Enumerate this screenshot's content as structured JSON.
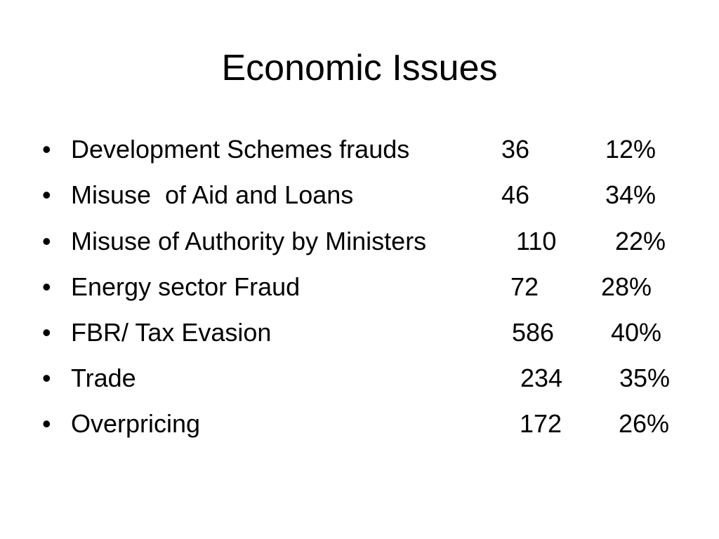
{
  "slide": {
    "title": "Economic Issues",
    "bullet_glyph": "•",
    "items": [
      {
        "label": "Development Schemes frauds",
        "count": "36",
        "percent": "12%"
      },
      {
        "label": "Misuse  of Aid and Loans",
        "count": "46",
        "percent": "34%"
      },
      {
        "label": "Misuse of Authority by Ministers",
        "count": "110",
        "percent": "22%"
      },
      {
        "label": "Energy sector Fraud",
        "count": "72",
        "percent": "28%"
      },
      {
        "label": "FBR/ Tax Evasion",
        "count": "586",
        "percent": "40%"
      },
      {
        "label": "Trade",
        "count": "234",
        "percent": "35%"
      },
      {
        "label": "Overpricing",
        "count": "172",
        "percent": "26%"
      }
    ]
  }
}
